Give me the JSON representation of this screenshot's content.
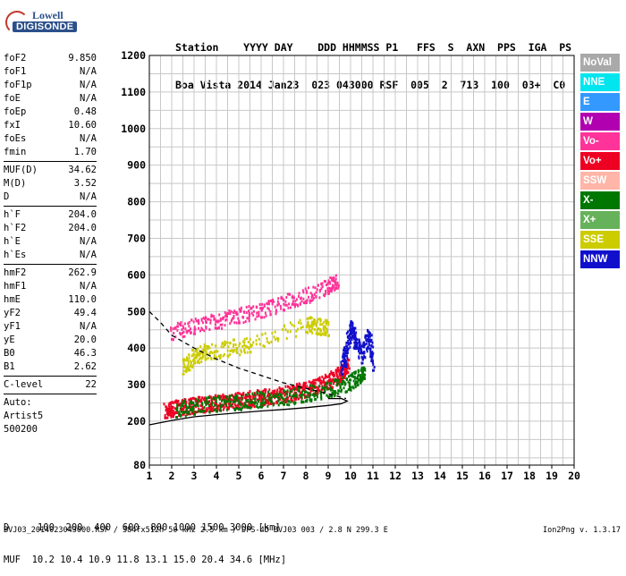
{
  "logo": {
    "line1": "Lowell",
    "line2": "DIGISONDE"
  },
  "header": {
    "labels": "Station    YYYY DAY    DDD HHMMSS P1   FFS  S  AXN  PPS  IGA  PS",
    "values": "Boa Vista 2014 Jan23  023 043000 RSF  005  2  713  100  03+  C0"
  },
  "params_group1": [
    {
      "name": "foF2",
      "value": "9.850"
    },
    {
      "name": "foF1",
      "value": "N/A"
    },
    {
      "name": "foF1p",
      "value": "N/A"
    },
    {
      "name": "foE",
      "value": "N/A"
    },
    {
      "name": "foEp",
      "value": "0.48"
    },
    {
      "name": "fxI",
      "value": "10.60"
    },
    {
      "name": "foEs",
      "value": "N/A"
    },
    {
      "name": "fmin",
      "value": "1.70"
    }
  ],
  "params_group2": [
    {
      "name": "MUF(D)",
      "value": "34.62"
    },
    {
      "name": "M(D)",
      "value": "3.52"
    },
    {
      "name": "D",
      "value": "N/A"
    }
  ],
  "params_group3": [
    {
      "name": "h`F",
      "value": "204.0"
    },
    {
      "name": "h`F2",
      "value": "204.0"
    },
    {
      "name": "h`E",
      "value": "N/A"
    },
    {
      "name": "h`Es",
      "value": "N/A"
    }
  ],
  "params_group4": [
    {
      "name": "hmF2",
      "value": "262.9"
    },
    {
      "name": "hmF1",
      "value": "N/A"
    },
    {
      "name": "hmE",
      "value": "110.0"
    },
    {
      "name": "yF2",
      "value": "49.4"
    },
    {
      "name": "yF1",
      "value": "N/A"
    },
    {
      "name": "yE",
      "value": "20.0"
    },
    {
      "name": "B0",
      "value": "46.3"
    },
    {
      "name": "B1",
      "value": "2.62"
    }
  ],
  "params_group5": [
    {
      "name": "C-level",
      "value": "22"
    }
  ],
  "autoscaling": {
    "line1": "Auto:",
    "line2": "Artist5",
    "line3": "500200"
  },
  "legend": [
    {
      "label": "NoVal",
      "color": "#a9a9a9"
    },
    {
      "label": "NNE",
      "color": "#00e5ee"
    },
    {
      "label": "E",
      "color": "#3399ff"
    },
    {
      "label": "W",
      "color": "#b000b0"
    },
    {
      "label": "Vo-",
      "color": "#ff3399"
    },
    {
      "label": "Vo+",
      "color": "#ee0022"
    },
    {
      "label": "SSW",
      "color": "#ffb6a8"
    },
    {
      "label": "X-",
      "color": "#007700"
    },
    {
      "label": "X+",
      "color": "#66b25a"
    },
    {
      "label": "SSE",
      "color": "#cccc00"
    },
    {
      "label": "NNW",
      "color": "#1010cc"
    }
  ],
  "footer": {
    "line1": "D     100  200  400  600  800 1000 1500 3000 [km]",
    "line2": "MUF  10.2 10.4 10.9 11.8 13.1 15.0 20.4 34.6 [MHz]",
    "line3": "BVJ03_2014023043000.RSF / 384fx512h 50 kHz 2.5 km / DPS-4D BVJ03 003 / 2.8 N 299.3 E",
    "version": "Ion2Png v. 1.3.17"
  },
  "chart_data": {
    "type": "scatter",
    "x_range": [
      1,
      20
    ],
    "y_range": [
      80,
      1200
    ],
    "x_ticks": [
      1,
      2,
      3,
      4,
      5,
      6,
      7,
      8,
      9,
      10,
      11,
      12,
      13,
      14,
      15,
      16,
      17,
      18,
      19,
      20
    ],
    "y_ticks": [
      80,
      200,
      300,
      400,
      500,
      600,
      700,
      800,
      900,
      1000,
      1100,
      1200
    ],
    "grid": true,
    "series": [
      {
        "name": "Vo+",
        "color": "#ee0022",
        "trace": "ordinary F2 trace",
        "x": [
          1.7,
          2.0,
          2.5,
          3.0,
          3.5,
          4.0,
          4.5,
          5.0,
          5.5,
          6.0,
          6.5,
          7.0,
          7.5,
          8.0,
          8.5,
          9.0,
          9.4,
          9.7,
          9.85
        ],
        "y": [
          210,
          215,
          220,
          225,
          228,
          232,
          235,
          238,
          242,
          246,
          250,
          255,
          260,
          268,
          278,
          290,
          305,
          320,
          335
        ]
      },
      {
        "name": "Vo-",
        "color": "#ff3399",
        "trace": "second hop F2",
        "x": [
          2.0,
          3.0,
          4.0,
          5.0,
          6.0,
          7.0,
          8.0,
          9.0,
          9.4
        ],
        "y": [
          425,
          440,
          455,
          470,
          485,
          505,
          525,
          550,
          565
        ]
      },
      {
        "name": "X+",
        "color": "#007700",
        "trace": "extraordinary trace",
        "x": [
          2.2,
          3.0,
          4.0,
          5.0,
          6.0,
          7.0,
          8.0,
          9.0,
          9.8,
          10.3,
          10.6
        ],
        "y": [
          212,
          220,
          228,
          234,
          240,
          247,
          256,
          268,
          282,
          300,
          318
        ]
      },
      {
        "name": "SSE",
        "color": "#cccc00",
        "trace": "oblique echoes",
        "x": [
          2.5,
          3.0,
          3.5,
          4.5,
          5.5,
          8.0,
          8.5,
          9.0
        ],
        "y": [
          330,
          360,
          370,
          380,
          390,
          445,
          440,
          435
        ]
      },
      {
        "name": "NNW",
        "color": "#1010cc",
        "trace": "spread echoes",
        "x": [
          9.6,
          9.8,
          10.0,
          10.2,
          10.5,
          10.8,
          11.0
        ],
        "y": [
          330,
          380,
          440,
          400,
          360,
          420,
          340
        ]
      }
    ],
    "profile_curve": {
      "color": "#000000",
      "x": [
        1.0,
        2.0,
        3.0,
        4.0,
        5.0,
        6.0,
        7.0,
        8.0,
        9.0,
        9.6,
        9.85,
        9.6,
        9.0
      ],
      "y": [
        190,
        202,
        212,
        218,
        223,
        228,
        232,
        237,
        243,
        248,
        255,
        262,
        262
      ]
    },
    "dashed_curve": {
      "color": "#000000",
      "x": [
        1.0,
        1.5,
        2.0,
        3.0,
        4.0,
        5.0,
        6.0,
        7.0,
        8.0,
        9.0,
        9.8
      ],
      "y": [
        500,
        470,
        435,
        400,
        370,
        345,
        325,
        305,
        290,
        275,
        262
      ]
    }
  }
}
